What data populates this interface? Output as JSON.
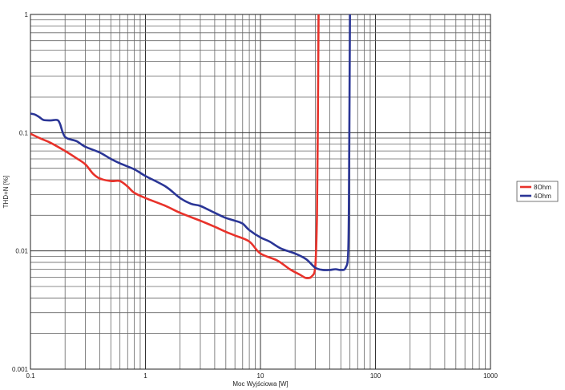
{
  "chart_data": {
    "type": "line",
    "title": "",
    "xlabel": "Moc Wyjściowa [W]",
    "ylabel": "THD+N [%]",
    "xscale": "log",
    "yscale": "log",
    "xlim": [
      0.1,
      1000
    ],
    "ylim": [
      0.001,
      1
    ],
    "grid": true,
    "legend_position": "right",
    "x_tick_labels": [
      "0.1",
      "1",
      "10",
      "100",
      "1000"
    ],
    "y_tick_labels": [
      "0.001",
      "0.01",
      "0.1",
      "1"
    ],
    "series": [
      {
        "name": "8Ohm",
        "color": "#e8322a",
        "points": [
          [
            0.1,
            0.098
          ],
          [
            0.12,
            0.09
          ],
          [
            0.15,
            0.082
          ],
          [
            0.2,
            0.07
          ],
          [
            0.25,
            0.061
          ],
          [
            0.3,
            0.054
          ],
          [
            0.35,
            0.045
          ],
          [
            0.4,
            0.041
          ],
          [
            0.5,
            0.039
          ],
          [
            0.6,
            0.039
          ],
          [
            0.7,
            0.035
          ],
          [
            0.8,
            0.031
          ],
          [
            1,
            0.028
          ],
          [
            1.5,
            0.024
          ],
          [
            2,
            0.021
          ],
          [
            3,
            0.018
          ],
          [
            4,
            0.016
          ],
          [
            5,
            0.0145
          ],
          [
            6,
            0.0135
          ],
          [
            8,
            0.012
          ],
          [
            10,
            0.0095
          ],
          [
            14,
            0.0083
          ],
          [
            18,
            0.007
          ],
          [
            22,
            0.0063
          ],
          [
            25,
            0.0059
          ],
          [
            28,
            0.0061
          ],
          [
            30,
            0.0075
          ],
          [
            31,
            0.02
          ],
          [
            31.5,
            0.1
          ],
          [
            32,
            1
          ]
        ]
      },
      {
        "name": "4Ohm",
        "color": "#2a3596",
        "points": [
          [
            0.1,
            0.145
          ],
          [
            0.11,
            0.142
          ],
          [
            0.12,
            0.135
          ],
          [
            0.13,
            0.128
          ],
          [
            0.15,
            0.127
          ],
          [
            0.17,
            0.128
          ],
          [
            0.18,
            0.12
          ],
          [
            0.2,
            0.092
          ],
          [
            0.25,
            0.085
          ],
          [
            0.3,
            0.076
          ],
          [
            0.4,
            0.068
          ],
          [
            0.5,
            0.06
          ],
          [
            0.6,
            0.055
          ],
          [
            0.8,
            0.049
          ],
          [
            1,
            0.043
          ],
          [
            1.5,
            0.035
          ],
          [
            2,
            0.028
          ],
          [
            2.5,
            0.025
          ],
          [
            3,
            0.024
          ],
          [
            4,
            0.021
          ],
          [
            5,
            0.019
          ],
          [
            6,
            0.018
          ],
          [
            7,
            0.017
          ],
          [
            8,
            0.015
          ],
          [
            10,
            0.013
          ],
          [
            12,
            0.012
          ],
          [
            15,
            0.0105
          ],
          [
            20,
            0.0095
          ],
          [
            25,
            0.0085
          ],
          [
            30,
            0.0072
          ],
          [
            35,
            0.0069
          ],
          [
            40,
            0.0069
          ],
          [
            45,
            0.007
          ],
          [
            50,
            0.0069
          ],
          [
            55,
            0.0072
          ],
          [
            58,
            0.01
          ],
          [
            59,
            0.05
          ],
          [
            60,
            1
          ]
        ]
      }
    ]
  }
}
